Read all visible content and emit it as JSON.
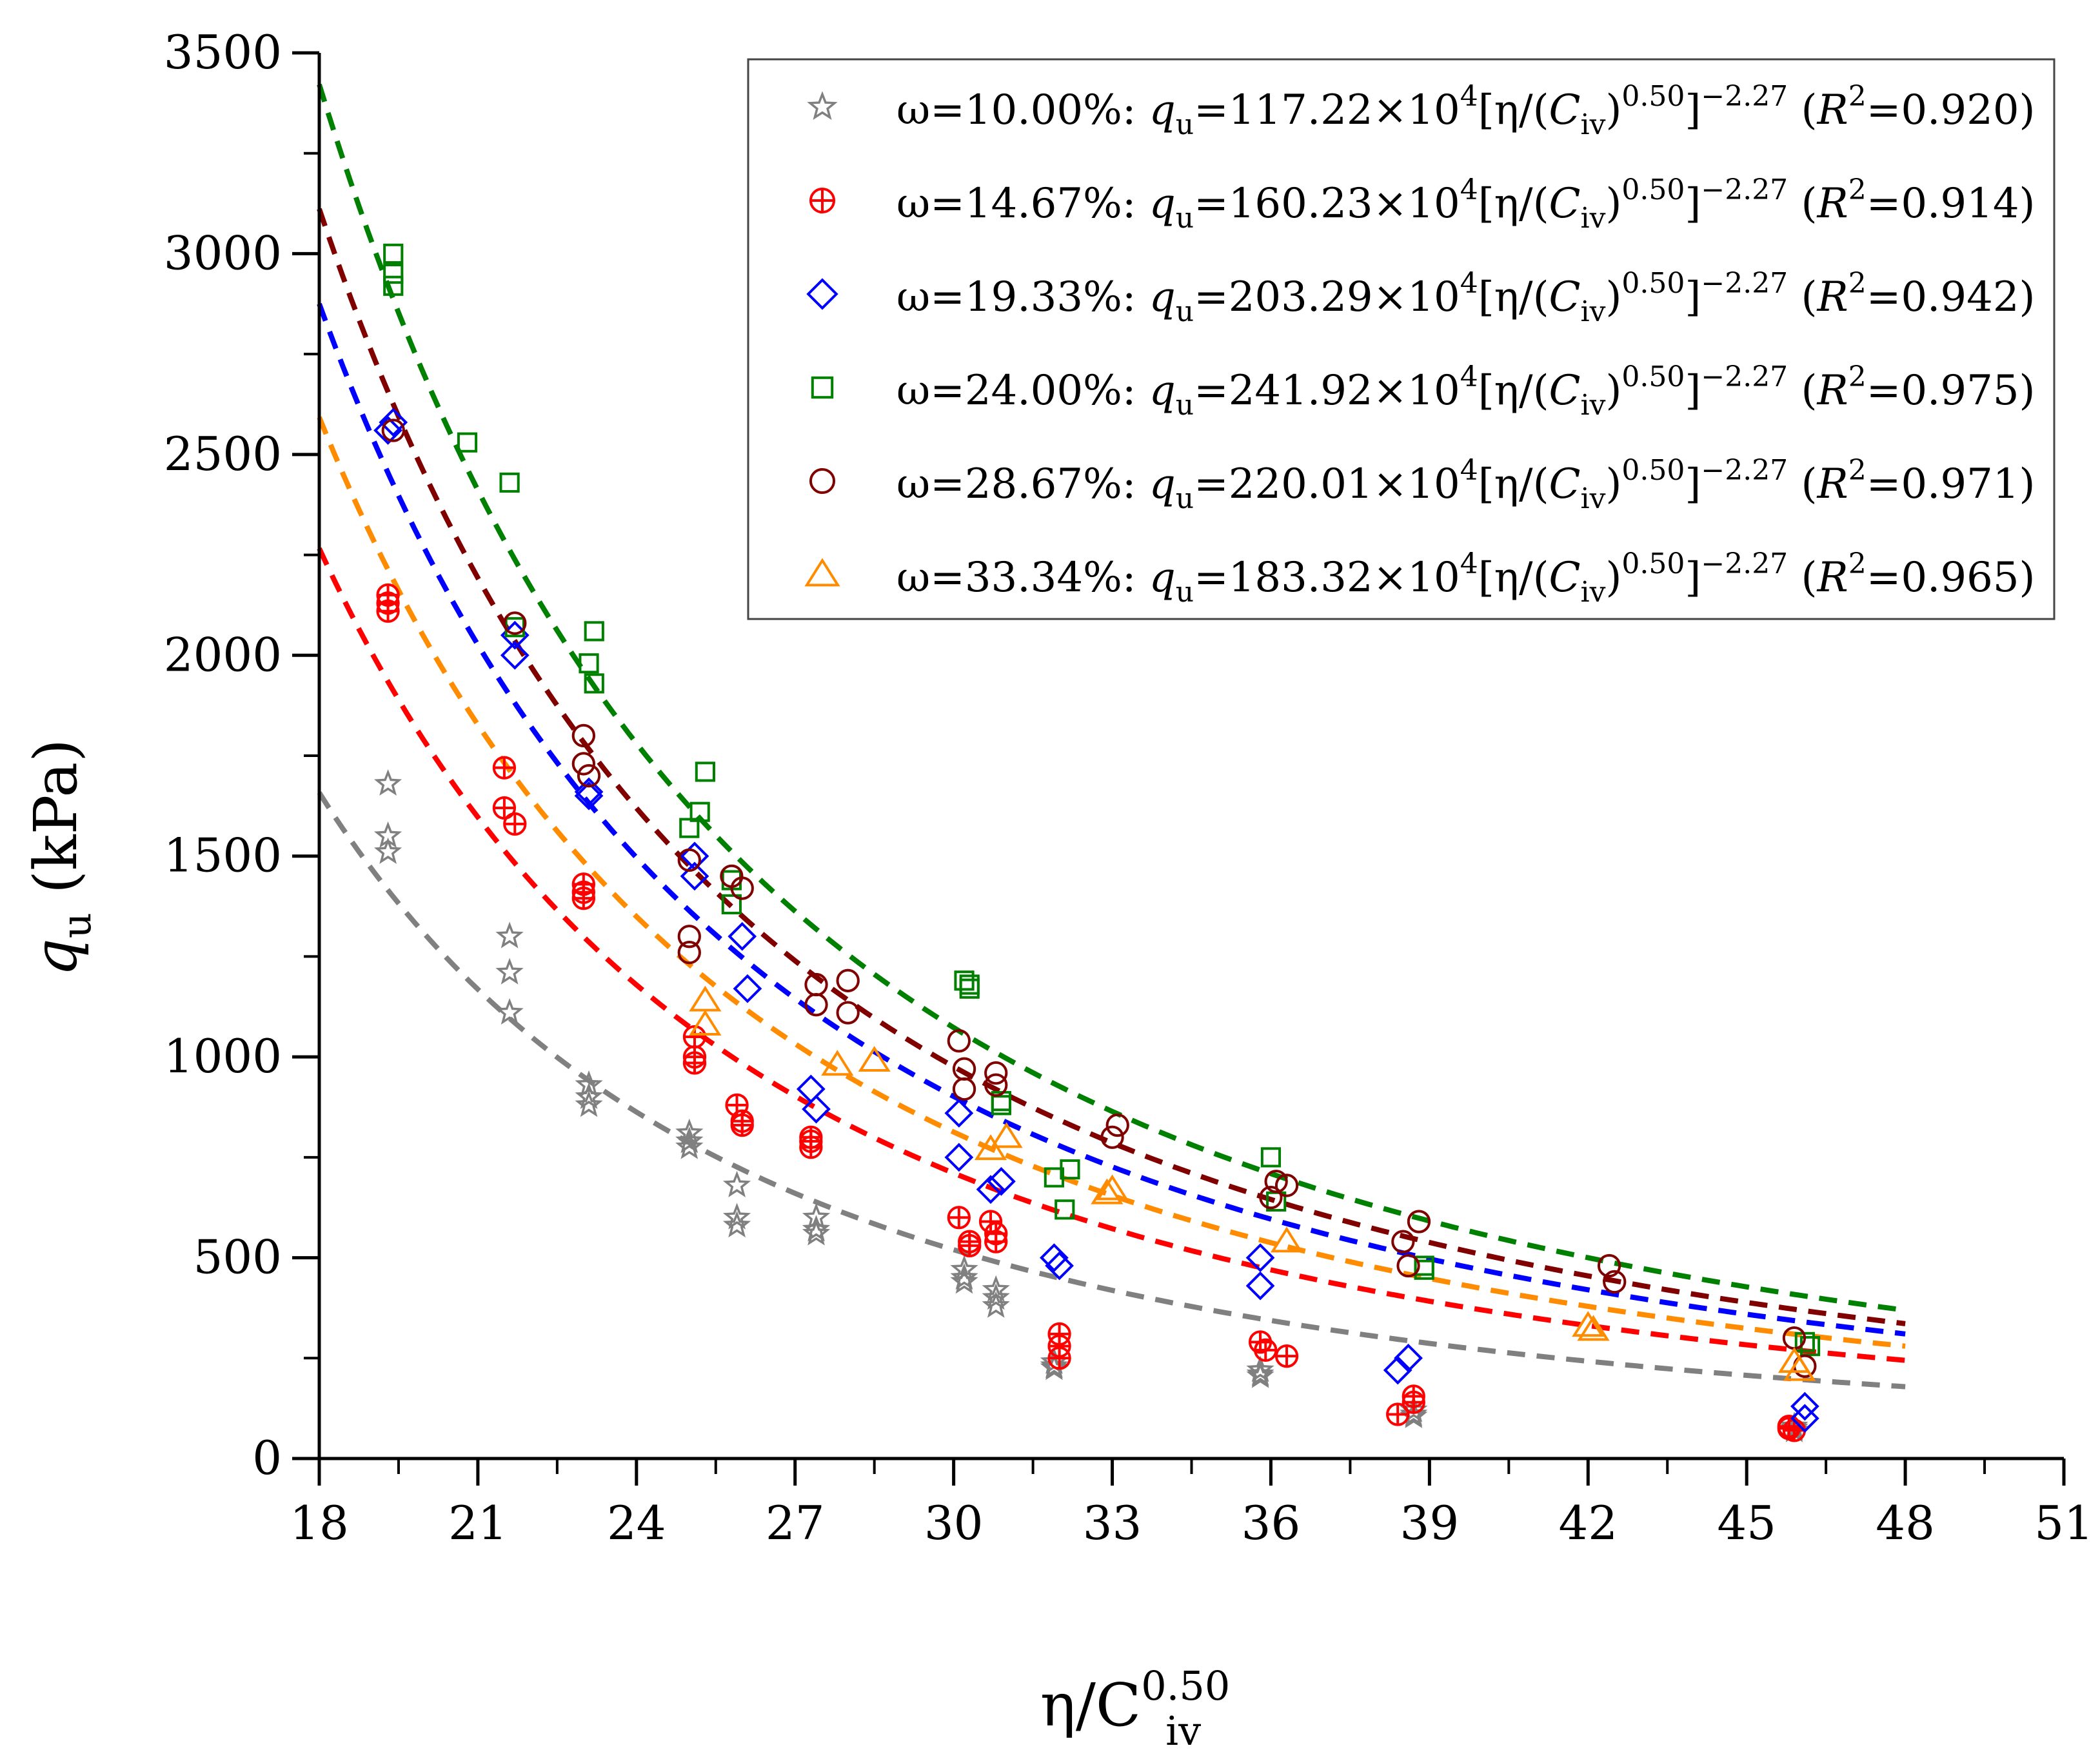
{
  "chart_data": {
    "type": "scatter",
    "xlabel": "η/C_iv^0.50",
    "xlabel_parts": {
      "base": "η/C",
      "sub": "iv",
      "sup": "0.50"
    },
    "ylabel": "q_u (kPa)",
    "ylabel_parts": {
      "base": "q",
      "sub": "u",
      "rest": " (kPa)"
    },
    "xlim": [
      18,
      51
    ],
    "ylim": [
      0,
      3500
    ],
    "xticks": [
      "18",
      "21",
      "24",
      "27",
      "30",
      "33",
      "36",
      "39",
      "42",
      "45",
      "48",
      "51"
    ],
    "yticks": [
      "0",
      "500",
      "1000",
      "1500",
      "2000",
      "2500",
      "3000",
      "3500"
    ],
    "fit_form": {
      "exponent": "−2.27",
      "pow": "4",
      "inner_exp": "0.50"
    },
    "series": [
      {
        "name": "ω=10.00%",
        "marker": "star",
        "color": "#808080",
        "coef": 117.22,
        "r2": "0.920",
        "points": [
          [
            19.3,
            1680
          ],
          [
            19.3,
            1550
          ],
          [
            19.3,
            1510
          ],
          [
            21.6,
            1300
          ],
          [
            21.6,
            1210
          ],
          [
            21.6,
            1110
          ],
          [
            23.1,
            930
          ],
          [
            23.1,
            900
          ],
          [
            23.1,
            880
          ],
          [
            25.0,
            810
          ],
          [
            25.0,
            790
          ],
          [
            25.0,
            775
          ],
          [
            25.9,
            680
          ],
          [
            25.9,
            600
          ],
          [
            25.9,
            580
          ],
          [
            27.4,
            600
          ],
          [
            27.4,
            570
          ],
          [
            27.4,
            560
          ],
          [
            30.2,
            470
          ],
          [
            30.2,
            450
          ],
          [
            30.2,
            440
          ],
          [
            30.8,
            420
          ],
          [
            30.8,
            400
          ],
          [
            30.8,
            380
          ],
          [
            31.9,
            240
          ],
          [
            31.9,
            230
          ],
          [
            31.9,
            225
          ],
          [
            35.8,
            220
          ],
          [
            35.8,
            210
          ],
          [
            35.8,
            205
          ],
          [
            38.7,
            120
          ],
          [
            38.7,
            110
          ],
          [
            38.7,
            105
          ],
          [
            45.9,
            80
          ],
          [
            45.9,
            75
          ],
          [
            45.9,
            70
          ]
        ]
      },
      {
        "name": "ω=14.67%",
        "marker": "circle-plus",
        "color": "#ff0000",
        "coef": 160.23,
        "r2": "0.914",
        "points": [
          [
            19.3,
            2150
          ],
          [
            19.3,
            2130
          ],
          [
            19.3,
            2110
          ],
          [
            21.5,
            1720
          ],
          [
            21.5,
            1620
          ],
          [
            21.7,
            1580
          ],
          [
            23.0,
            1430
          ],
          [
            23.0,
            1410
          ],
          [
            23.0,
            1395
          ],
          [
            25.1,
            1050
          ],
          [
            25.1,
            1000
          ],
          [
            25.1,
            985
          ],
          [
            25.9,
            880
          ],
          [
            26.0,
            840
          ],
          [
            26.0,
            830
          ],
          [
            27.3,
            800
          ],
          [
            27.3,
            790
          ],
          [
            27.3,
            775
          ],
          [
            30.1,
            600
          ],
          [
            30.3,
            540
          ],
          [
            30.3,
            530
          ],
          [
            30.7,
            590
          ],
          [
            30.8,
            560
          ],
          [
            30.8,
            540
          ],
          [
            32.0,
            310
          ],
          [
            32.0,
            280
          ],
          [
            32.0,
            250
          ],
          [
            35.8,
            290
          ],
          [
            35.9,
            270
          ],
          [
            36.3,
            255
          ],
          [
            38.4,
            110
          ],
          [
            38.7,
            140
          ],
          [
            38.7,
            155
          ],
          [
            45.8,
            80
          ],
          [
            45.8,
            75
          ],
          [
            45.9,
            70
          ]
        ]
      },
      {
        "name": "ω=19.33%",
        "marker": "diamond",
        "color": "#0000ff",
        "coef": 203.29,
        "r2": "0.942",
        "points": [
          [
            19.3,
            2560
          ],
          [
            19.4,
            2580
          ],
          [
            21.7,
            2050
          ],
          [
            21.7,
            2000
          ],
          [
            23.1,
            1660
          ],
          [
            23.1,
            1650
          ],
          [
            25.1,
            1500
          ],
          [
            25.1,
            1450
          ],
          [
            26.0,
            1300
          ],
          [
            26.1,
            1170
          ],
          [
            27.3,
            920
          ],
          [
            27.4,
            870
          ],
          [
            30.1,
            860
          ],
          [
            30.1,
            750
          ],
          [
            30.7,
            670
          ],
          [
            30.9,
            690
          ],
          [
            31.9,
            500
          ],
          [
            32.0,
            480
          ],
          [
            35.8,
            500
          ],
          [
            35.8,
            430
          ],
          [
            38.4,
            220
          ],
          [
            38.6,
            250
          ],
          [
            46.1,
            130
          ],
          [
            46.1,
            100
          ]
        ]
      },
      {
        "name": "ω=24.00%",
        "marker": "square",
        "color": "#008000",
        "coef": 241.92,
        "r2": "0.975",
        "points": [
          [
            19.4,
            3000
          ],
          [
            19.4,
            2950
          ],
          [
            19.4,
            2920
          ],
          [
            20.8,
            2530
          ],
          [
            21.6,
            2430
          ],
          [
            21.7,
            2070
          ],
          [
            23.2,
            2060
          ],
          [
            23.1,
            1980
          ],
          [
            23.2,
            1930
          ],
          [
            25.3,
            1710
          ],
          [
            25.2,
            1610
          ],
          [
            25.0,
            1570
          ],
          [
            25.8,
            1440
          ],
          [
            25.8,
            1380
          ],
          [
            30.2,
            1190
          ],
          [
            30.3,
            1180
          ],
          [
            30.3,
            1170
          ],
          [
            30.9,
            890
          ],
          [
            30.9,
            880
          ],
          [
            32.2,
            720
          ],
          [
            31.9,
            700
          ],
          [
            32.1,
            620
          ],
          [
            36.0,
            750
          ],
          [
            36.1,
            640
          ],
          [
            38.9,
            480
          ],
          [
            38.9,
            470
          ],
          [
            46.1,
            290
          ],
          [
            46.2,
            280
          ]
        ]
      },
      {
        "name": "ω=28.67%",
        "marker": "circle",
        "color": "#800000",
        "coef": 220.01,
        "r2": "0.971",
        "points": [
          [
            19.4,
            2560
          ],
          [
            21.7,
            2080
          ],
          [
            23.0,
            1800
          ],
          [
            23.0,
            1730
          ],
          [
            23.1,
            1700
          ],
          [
            25.0,
            1490
          ],
          [
            25.0,
            1300
          ],
          [
            25.0,
            1260
          ],
          [
            25.8,
            1450
          ],
          [
            26.0,
            1420
          ],
          [
            27.4,
            1180
          ],
          [
            27.4,
            1130
          ],
          [
            28.0,
            1190
          ],
          [
            28.0,
            1110
          ],
          [
            30.1,
            1040
          ],
          [
            30.2,
            970
          ],
          [
            30.2,
            920
          ],
          [
            30.8,
            960
          ],
          [
            30.8,
            930
          ],
          [
            33.1,
            830
          ],
          [
            33.0,
            800
          ],
          [
            36.1,
            690
          ],
          [
            36.3,
            680
          ],
          [
            36.0,
            650
          ],
          [
            38.5,
            540
          ],
          [
            38.8,
            590
          ],
          [
            38.6,
            480
          ],
          [
            42.4,
            480
          ],
          [
            42.5,
            440
          ],
          [
            45.9,
            300
          ],
          [
            46.1,
            230
          ]
        ]
      },
      {
        "name": "ω=33.34%",
        "marker": "triangle",
        "color": "#ff8c00",
        "coef": 183.32,
        "r2": "0.965",
        "points": [
          [
            25.3,
            1140
          ],
          [
            25.3,
            1080
          ],
          [
            27.8,
            980
          ],
          [
            28.5,
            990
          ],
          [
            30.7,
            770
          ],
          [
            31.0,
            800
          ],
          [
            32.9,
            660
          ],
          [
            33.0,
            670
          ],
          [
            36.3,
            540
          ],
          [
            42.0,
            330
          ],
          [
            42.1,
            320
          ],
          [
            45.9,
            240
          ],
          [
            46.0,
            220
          ]
        ]
      }
    ],
    "curve_x_range": [
      18,
      48
    ]
  }
}
